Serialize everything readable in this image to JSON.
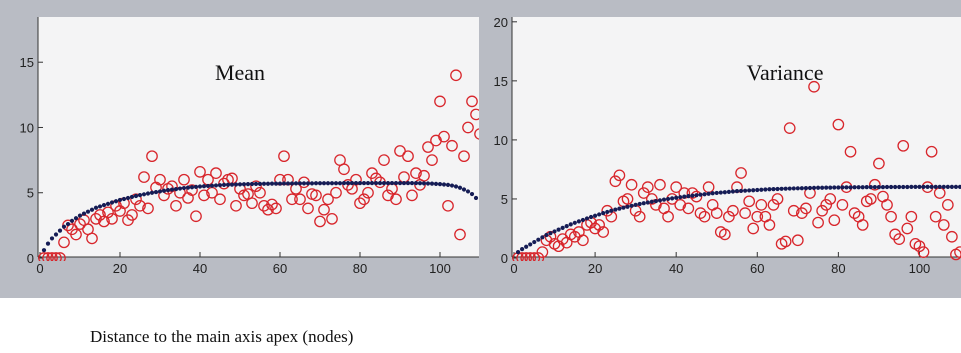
{
  "figure": {
    "xlabel": "Distance to the main axis apex (nodes)"
  },
  "chart_data": [
    {
      "type": "scatter",
      "title": "Mean",
      "xlim": [
        0,
        110
      ],
      "ylim": [
        0,
        19
      ],
      "xticks": [
        0,
        20,
        40,
        60,
        80,
        100
      ],
      "yticks": [
        0,
        5,
        10,
        15
      ],
      "grid": false,
      "series": [
        {
          "marker": "open-circle",
          "color": "#d8262c",
          "x": [
            1,
            2,
            3,
            4,
            5,
            6,
            7,
            8,
            9,
            10,
            11,
            12,
            13,
            14,
            15,
            16,
            17,
            18,
            19,
            20,
            21,
            22,
            23,
            24,
            25,
            26,
            27,
            28,
            29,
            30,
            31,
            32,
            33,
            34,
            35,
            36,
            37,
            38,
            39,
            40,
            41,
            42,
            43,
            44,
            45,
            46,
            47,
            48,
            49,
            50,
            51,
            52,
            53,
            54,
            55,
            56,
            57,
            58,
            59,
            60,
            61,
            62,
            63,
            64,
            65,
            66,
            67,
            68,
            69,
            70,
            71,
            72,
            73,
            74,
            75,
            76,
            77,
            78,
            79,
            80,
            81,
            82,
            83,
            84,
            85,
            86,
            87,
            88,
            89,
            90,
            91,
            92,
            93,
            94,
            95,
            96,
            97,
            98,
            99,
            100,
            101,
            102,
            103,
            104,
            105,
            106,
            107,
            108,
            109,
            110
          ],
          "y": [
            0,
            0,
            0,
            0,
            0,
            1.2,
            2.5,
            2.2,
            1.8,
            2.6,
            2.9,
            2.2,
            1.5,
            3.0,
            3.3,
            2.8,
            3.5,
            3.0,
            4.0,
            3.6,
            4.2,
            2.9,
            3.3,
            4.5,
            4.0,
            6.2,
            3.8,
            7.8,
            5.4,
            6.0,
            4.8,
            5.3,
            5.5,
            4.0,
            5.0,
            6.0,
            4.6,
            5.2,
            3.2,
            6.6,
            4.8,
            6.0,
            5.0,
            6.5,
            4.5,
            5.7,
            6.0,
            6.1,
            4.0,
            5.3,
            4.8,
            4.9,
            4.2,
            5.5,
            5.0,
            4.0,
            3.7,
            4.1,
            3.8,
            6.0,
            7.8,
            6.0,
            4.5,
            5.3,
            4.5,
            5.8,
            3.8,
            4.9,
            4.8,
            2.8,
            3.7,
            4.5,
            3.0,
            5.0,
            7.5,
            6.8,
            5.6,
            5.3,
            6.0,
            4.2,
            4.5,
            5.0,
            6.5,
            6.1,
            5.8,
            7.5,
            4.8,
            5.3,
            4.5,
            8.2,
            6.2,
            7.8,
            4.8,
            6.5,
            5.6,
            6.3,
            8.5,
            7.5,
            9.0,
            12.0,
            9.3,
            4.0,
            8.6,
            14.0,
            1.8,
            7.8,
            10.0,
            12.0,
            11.0,
            9.5
          ]
        },
        {
          "marker": "filled-dot",
          "color": "#151c55",
          "x": [
            1,
            2,
            3,
            4,
            5,
            6,
            7,
            8,
            9,
            10,
            11,
            12,
            13,
            14,
            15,
            16,
            17,
            18,
            19,
            20,
            21,
            22,
            23,
            24,
            25,
            26,
            27,
            28,
            29,
            30,
            31,
            32,
            33,
            34,
            35,
            36,
            37,
            38,
            39,
            40,
            41,
            42,
            43,
            44,
            45,
            46,
            47,
            48,
            49,
            50,
            51,
            52,
            53,
            54,
            55,
            56,
            57,
            58,
            59,
            60,
            61,
            62,
            63,
            64,
            65,
            66,
            67,
            68,
            69,
            70,
            71,
            72,
            73,
            74,
            75,
            76,
            77,
            78,
            79,
            80,
            81,
            82,
            83,
            84,
            85,
            86,
            87,
            88,
            89,
            90,
            91,
            92,
            93,
            94,
            95,
            96,
            97,
            98,
            99,
            100,
            101,
            102,
            103,
            104,
            105,
            106,
            107,
            108,
            109
          ],
          "y": [
            0.6,
            1.1,
            1.5,
            1.8,
            2.1,
            2.4,
            2.6,
            2.85,
            3.05,
            3.25,
            3.4,
            3.55,
            3.7,
            3.85,
            3.95,
            4.05,
            4.15,
            4.25,
            4.35,
            4.45,
            4.52,
            4.6,
            4.68,
            4.75,
            4.82,
            4.88,
            4.94,
            5.0,
            5.05,
            5.1,
            5.15,
            5.2,
            5.24,
            5.28,
            5.32,
            5.36,
            5.39,
            5.42,
            5.45,
            5.48,
            5.5,
            5.52,
            5.54,
            5.56,
            5.58,
            5.6,
            5.61,
            5.62,
            5.63,
            5.64,
            5.65,
            5.66,
            5.67,
            5.68,
            5.68,
            5.69,
            5.69,
            5.7,
            5.7,
            5.7,
            5.71,
            5.71,
            5.71,
            5.72,
            5.72,
            5.72,
            5.72,
            5.72,
            5.73,
            5.73,
            5.73,
            5.73,
            5.73,
            5.73,
            5.73,
            5.74,
            5.74,
            5.74,
            5.74,
            5.74,
            5.74,
            5.74,
            5.74,
            5.74,
            5.74,
            5.74,
            5.74,
            5.74,
            5.74,
            5.74,
            5.74,
            5.74,
            5.74,
            5.74,
            5.73,
            5.72,
            5.71,
            5.7,
            5.68,
            5.66,
            5.63,
            5.6,
            5.55,
            5.48,
            5.38,
            5.25,
            5.1,
            4.9,
            4.6
          ]
        }
      ]
    },
    {
      "type": "scatter",
      "title": "Variance",
      "xlim": [
        0,
        110
      ],
      "ylim": [
        0,
        21
      ],
      "xticks": [
        0,
        20,
        40,
        60,
        80,
        100
      ],
      "yticks": [
        0,
        5,
        10,
        15,
        20
      ],
      "grid": false,
      "series": [
        {
          "marker": "open-circle",
          "color": "#d8262c",
          "x": [
            1,
            2,
            3,
            4,
            5,
            6,
            7,
            8,
            9,
            10,
            11,
            12,
            13,
            14,
            15,
            16,
            17,
            18,
            19,
            20,
            21,
            22,
            23,
            24,
            25,
            26,
            27,
            28,
            29,
            30,
            31,
            32,
            33,
            34,
            35,
            36,
            37,
            38,
            39,
            40,
            41,
            42,
            43,
            44,
            45,
            46,
            47,
            48,
            49,
            50,
            51,
            52,
            53,
            54,
            55,
            56,
            57,
            58,
            59,
            60,
            61,
            62,
            63,
            64,
            65,
            66,
            67,
            68,
            69,
            70,
            71,
            72,
            73,
            74,
            75,
            76,
            77,
            78,
            79,
            80,
            81,
            82,
            83,
            84,
            85,
            86,
            87,
            88,
            89,
            90,
            91,
            92,
            93,
            94,
            95,
            96,
            97,
            98,
            99,
            100,
            101,
            102,
            103,
            104,
            105,
            106,
            107,
            108,
            109,
            110
          ],
          "y": [
            0,
            0,
            0,
            0,
            0,
            0,
            0.5,
            1.5,
            1.8,
            1.2,
            1.0,
            1.6,
            1.3,
            2.0,
            1.8,
            2.2,
            1.5,
            2.8,
            3.0,
            2.5,
            2.8,
            2.2,
            4.0,
            3.5,
            6.5,
            7.0,
            4.8,
            5.0,
            6.2,
            4.0,
            3.5,
            5.5,
            6.0,
            5.0,
            4.5,
            6.2,
            4.2,
            3.5,
            5.0,
            6.0,
            4.5,
            5.5,
            4.2,
            5.5,
            5.2,
            3.8,
            3.5,
            6.0,
            4.5,
            3.8,
            2.2,
            2.0,
            3.5,
            4.0,
            6.0,
            7.2,
            3.8,
            4.8,
            2.5,
            3.5,
            4.5,
            3.5,
            2.8,
            4.5,
            5.0,
            1.2,
            1.4,
            11.0,
            4.0,
            1.5,
            3.8,
            4.2,
            5.5,
            14.5,
            3.0,
            4.0,
            4.5,
            5.0,
            3.2,
            11.3,
            4.5,
            6.0,
            9.0,
            3.8,
            3.5,
            2.8,
            4.8,
            5.0,
            6.2,
            8.0,
            5.2,
            4.5,
            3.5,
            2.0,
            1.6,
            9.5,
            2.5,
            3.5,
            1.2,
            1.0,
            0.5,
            6.0,
            9.0,
            3.5,
            5.5,
            2.8,
            4.5,
            1.8,
            0.3,
            0.5
          ]
        },
        {
          "marker": "filled-dot",
          "color": "#151c55",
          "x": [
            1,
            2,
            3,
            4,
            5,
            6,
            7,
            8,
            9,
            10,
            11,
            12,
            13,
            14,
            15,
            16,
            17,
            18,
            19,
            20,
            21,
            22,
            23,
            24,
            25,
            26,
            27,
            28,
            29,
            30,
            31,
            32,
            33,
            34,
            35,
            36,
            37,
            38,
            39,
            40,
            41,
            42,
            43,
            44,
            45,
            46,
            47,
            48,
            49,
            50,
            51,
            52,
            53,
            54,
            55,
            56,
            57,
            58,
            59,
            60,
            61,
            62,
            63,
            64,
            65,
            66,
            67,
            68,
            69,
            70,
            71,
            72,
            73,
            74,
            75,
            76,
            77,
            78,
            79,
            80,
            81,
            82,
            83,
            84,
            85,
            86,
            87,
            88,
            89,
            90,
            91,
            92,
            93,
            94,
            95,
            96,
            97,
            98,
            99,
            100,
            101,
            102,
            103,
            104,
            105,
            106,
            107,
            108,
            109,
            110
          ],
          "y": [
            0.5,
            0.75,
            0.95,
            1.15,
            1.35,
            1.55,
            1.75,
            1.95,
            2.1,
            2.25,
            2.4,
            2.55,
            2.7,
            2.85,
            2.98,
            3.1,
            3.22,
            3.35,
            3.47,
            3.58,
            3.69,
            3.8,
            3.9,
            4.0,
            4.1,
            4.18,
            4.26,
            4.34,
            4.42,
            4.5,
            4.57,
            4.64,
            4.7,
            4.76,
            4.82,
            4.88,
            4.94,
            5.0,
            5.05,
            5.1,
            5.15,
            5.2,
            5.24,
            5.28,
            5.32,
            5.36,
            5.4,
            5.44,
            5.48,
            5.51,
            5.54,
            5.57,
            5.6,
            5.63,
            5.66,
            5.68,
            5.7,
            5.72,
            5.74,
            5.76,
            5.78,
            5.8,
            5.82,
            5.83,
            5.84,
            5.86,
            5.87,
            5.88,
            5.89,
            5.9,
            5.91,
            5.92,
            5.93,
            5.94,
            5.95,
            5.95,
            5.96,
            5.96,
            5.97,
            5.97,
            5.98,
            5.98,
            5.98,
            5.99,
            5.99,
            5.99,
            6.0,
            6.0,
            6.0,
            6.0,
            6.0,
            6.01,
            6.01,
            6.01,
            6.01,
            6.01,
            6.01,
            6.02,
            6.02,
            6.02,
            6.02,
            6.02,
            6.02,
            6.02,
            6.02,
            6.02,
            6.02,
            6.02,
            6.02,
            6.02
          ]
        }
      ]
    }
  ]
}
